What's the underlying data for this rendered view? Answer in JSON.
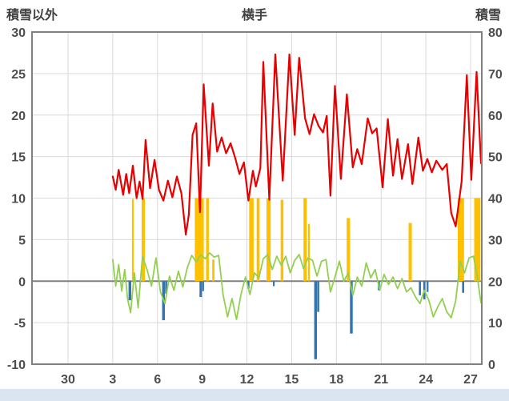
{
  "header": {
    "left_axis_title": "積雪以外",
    "title": "横手",
    "right_axis_title": "積雪"
  },
  "colors": {
    "red_line": "#e60000",
    "green_line": "#92d050",
    "orange_bar": "#ffc000",
    "blue_bar": "#2e75b6",
    "gridline": "#d9d9d9",
    "zero_line": "#808080",
    "frame": "#808080",
    "footer_strip": "#dbe5f1",
    "tick_text": "#4d4d4d"
  },
  "chart_data": {
    "type": "line",
    "title": "横手",
    "legend": "none",
    "grid": true,
    "left_axis": {
      "label": "積雪以外",
      "min": -10,
      "max": 30,
      "ticks": [
        30,
        25,
        20,
        15,
        10,
        5,
        0,
        -5,
        -10
      ]
    },
    "right_axis": {
      "label": "積雪",
      "min": 0,
      "max": 80,
      "ticks": [
        80,
        70,
        60,
        50,
        40,
        30,
        20,
        10,
        0
      ]
    },
    "x_axis": {
      "tick_labels": [
        "30",
        "3",
        "6",
        "9",
        "12",
        "15",
        "18",
        "21",
        "24",
        "27"
      ],
      "days_per_tick": 3,
      "first_tick_day_of_data": 3,
      "first_data_tick_index": 1
    },
    "series": [
      {
        "name": "orange-bars",
        "type": "bar",
        "color": "#ffc000",
        "bars": [
          [
            4.35,
            9.9,
            0.12
          ],
          [
            5.05,
            10,
            0.22
          ],
          [
            8.8,
            10,
            0.6
          ],
          [
            9.35,
            10,
            0.18
          ],
          [
            9.75,
            2.6,
            0.15
          ],
          [
            12.3,
            10,
            0.3
          ],
          [
            12.75,
            10,
            0.2
          ],
          [
            13.45,
            10,
            0.28
          ],
          [
            14.35,
            9.8,
            0.18
          ],
          [
            15.9,
            10,
            0.22
          ],
          [
            16.15,
            6.9,
            0.12
          ],
          [
            18.8,
            7.6,
            0.22
          ],
          [
            22.95,
            7.0,
            0.22
          ],
          [
            26.35,
            10,
            0.42
          ],
          [
            27.45,
            10,
            0.42
          ]
        ]
      },
      {
        "name": "blue-bars",
        "type": "bar",
        "color": "#2e75b6",
        "bars": [
          [
            4.15,
            -2.3,
            0.18
          ],
          [
            6.4,
            -4.7,
            0.18
          ],
          [
            6.58,
            -1.5,
            0.14
          ],
          [
            8.9,
            -1.9,
            0.16
          ],
          [
            9.06,
            -1.2,
            0.12
          ],
          [
            12.1,
            -0.9,
            0.14
          ],
          [
            13.8,
            -0.6,
            0.12
          ],
          [
            16.6,
            -9.4,
            0.18
          ],
          [
            16.78,
            -3.7,
            0.14
          ],
          [
            19.0,
            -6.3,
            0.18
          ],
          [
            20.85,
            -1.1,
            0.14
          ],
          [
            23.6,
            -1.7,
            0.14
          ],
          [
            23.9,
            -2.2,
            0.14
          ],
          [
            24.12,
            -1.3,
            0.12
          ],
          [
            26.5,
            -1.4,
            0.14
          ]
        ]
      },
      {
        "name": "green-line",
        "type": "line",
        "color": "#92d050",
        "width": 1.8,
        "points": [
          [
            3.0,
            2.6
          ],
          [
            3.2,
            -0.6
          ],
          [
            3.4,
            2.0
          ],
          [
            3.6,
            -1.2
          ],
          [
            3.8,
            1.4
          ],
          [
            4.0,
            -2.2
          ],
          [
            4.2,
            -3.8
          ],
          [
            4.45,
            1.0
          ],
          [
            4.7,
            -3.2
          ],
          [
            5.0,
            3.0
          ],
          [
            5.3,
            1.4
          ],
          [
            5.6,
            -0.6
          ],
          [
            5.9,
            2.8
          ],
          [
            6.2,
            -1.3
          ],
          [
            6.5,
            -2.7
          ],
          [
            6.8,
            0.6
          ],
          [
            7.1,
            -1.1
          ],
          [
            7.4,
            1.2
          ],
          [
            7.7,
            -0.7
          ],
          [
            8.0,
            1.6
          ],
          [
            8.3,
            3.1
          ],
          [
            8.6,
            2.3
          ],
          [
            8.9,
            3.2
          ],
          [
            9.2,
            2.7
          ],
          [
            9.5,
            3.4
          ],
          [
            9.8,
            2.9
          ],
          [
            10.1,
            3.1
          ],
          [
            10.4,
            -1.6
          ],
          [
            10.7,
            -4.3
          ],
          [
            11.0,
            -2.1
          ],
          [
            11.3,
            -4.6
          ],
          [
            11.6,
            -1.6
          ],
          [
            11.9,
            0.5
          ],
          [
            12.2,
            -1.6
          ],
          [
            12.5,
            1.0
          ],
          [
            12.8,
            0.4
          ],
          [
            13.1,
            2.7
          ],
          [
            13.4,
            3.2
          ],
          [
            13.7,
            1.4
          ],
          [
            14.0,
            3.0
          ],
          [
            14.3,
            1.9
          ],
          [
            14.6,
            3.0
          ],
          [
            14.9,
            1.0
          ],
          [
            15.2,
            2.5
          ],
          [
            15.5,
            3.2
          ],
          [
            15.8,
            1.5
          ],
          [
            16.1,
            2.8
          ],
          [
            16.4,
            2.5
          ],
          [
            16.7,
            0.6
          ],
          [
            17.0,
            2.4
          ],
          [
            17.3,
            2.6
          ],
          [
            17.6,
            -1.3
          ],
          [
            17.9,
            0.5
          ],
          [
            18.2,
            2.4
          ],
          [
            18.5,
            0.0
          ],
          [
            18.8,
            1.0
          ],
          [
            19.1,
            -1.7
          ],
          [
            19.4,
            0.5
          ],
          [
            19.7,
            -0.6
          ],
          [
            20.0,
            2.2
          ],
          [
            20.3,
            0.4
          ],
          [
            20.6,
            1.4
          ],
          [
            20.9,
            -1.1
          ],
          [
            21.2,
            0.8
          ],
          [
            21.5,
            -0.4
          ],
          [
            21.8,
            0.5
          ],
          [
            22.1,
            -0.9
          ],
          [
            22.4,
            0.3
          ],
          [
            22.7,
            -1.3
          ],
          [
            23.0,
            -0.8
          ],
          [
            23.3,
            -1.9
          ],
          [
            23.6,
            -2.7
          ],
          [
            23.9,
            -1.1
          ],
          [
            24.2,
            -2.3
          ],
          [
            24.5,
            -4.3
          ],
          [
            24.8,
            -3.1
          ],
          [
            25.1,
            -2.1
          ],
          [
            25.4,
            -3.7
          ],
          [
            25.7,
            -4.4
          ],
          [
            26.0,
            -2.4
          ],
          [
            26.3,
            2.4
          ],
          [
            26.6,
            1.0
          ],
          [
            26.9,
            2.8
          ],
          [
            27.2,
            3.0
          ],
          [
            27.45,
            0.5
          ],
          [
            27.7,
            -2.6
          ]
        ]
      },
      {
        "name": "red-line",
        "type": "line",
        "color": "#e60000",
        "width": 2.2,
        "points": [
          [
            3.0,
            12.6
          ],
          [
            3.2,
            11.0
          ],
          [
            3.4,
            13.4
          ],
          [
            3.7,
            10.4
          ],
          [
            3.9,
            12.9
          ],
          [
            4.1,
            10.6
          ],
          [
            4.35,
            13.9
          ],
          [
            4.6,
            10.0
          ],
          [
            4.8,
            12.0
          ],
          [
            5.0,
            9.9
          ],
          [
            5.2,
            17.0
          ],
          [
            5.5,
            11.2
          ],
          [
            5.8,
            14.6
          ],
          [
            6.1,
            11.0
          ],
          [
            6.4,
            9.7
          ],
          [
            6.7,
            12.1
          ],
          [
            7.0,
            10.1
          ],
          [
            7.3,
            12.6
          ],
          [
            7.6,
            10.6
          ],
          [
            7.9,
            5.6
          ],
          [
            8.1,
            8.0
          ],
          [
            8.35,
            17.6
          ],
          [
            8.6,
            19.0
          ],
          [
            8.85,
            8.3
          ],
          [
            9.1,
            23.7
          ],
          [
            9.45,
            13.9
          ],
          [
            9.7,
            21.4
          ],
          [
            10.0,
            15.6
          ],
          [
            10.3,
            17.3
          ],
          [
            10.6,
            15.4
          ],
          [
            10.9,
            16.6
          ],
          [
            11.2,
            14.9
          ],
          [
            11.5,
            12.9
          ],
          [
            11.8,
            14.3
          ],
          [
            12.1,
            9.7
          ],
          [
            12.4,
            13.3
          ],
          [
            12.6,
            11.4
          ],
          [
            12.9,
            13.6
          ],
          [
            13.1,
            26.4
          ],
          [
            13.5,
            9.8
          ],
          [
            13.9,
            27.3
          ],
          [
            14.4,
            12.1
          ],
          [
            14.85,
            27.3
          ],
          [
            15.2,
            17.6
          ],
          [
            15.5,
            26.9
          ],
          [
            15.9,
            19.6
          ],
          [
            16.2,
            17.7
          ],
          [
            16.5,
            20.1
          ],
          [
            16.8,
            18.7
          ],
          [
            17.1,
            17.9
          ],
          [
            17.35,
            19.9
          ],
          [
            17.6,
            10.3
          ],
          [
            17.9,
            23.5
          ],
          [
            18.3,
            12.3
          ],
          [
            18.7,
            22.5
          ],
          [
            19.1,
            13.7
          ],
          [
            19.4,
            15.9
          ],
          [
            19.7,
            14.1
          ],
          [
            20.1,
            19.6
          ],
          [
            20.4,
            17.8
          ],
          [
            20.7,
            18.4
          ],
          [
            21.1,
            11.3
          ],
          [
            21.45,
            19.5
          ],
          [
            21.8,
            12.7
          ],
          [
            22.1,
            17.1
          ],
          [
            22.4,
            12.3
          ],
          [
            22.8,
            16.5
          ],
          [
            23.1,
            11.7
          ],
          [
            23.5,
            17.3
          ],
          [
            23.8,
            13.3
          ],
          [
            24.1,
            14.7
          ],
          [
            24.4,
            13.1
          ],
          [
            24.7,
            14.5
          ],
          [
            25.1,
            13.4
          ],
          [
            25.4,
            14.1
          ],
          [
            25.7,
            8.2
          ],
          [
            26.0,
            6.6
          ],
          [
            26.4,
            12.0
          ],
          [
            26.75,
            24.8
          ],
          [
            27.05,
            12.2
          ],
          [
            27.4,
            25.2
          ],
          [
            27.7,
            14.2
          ]
        ]
      }
    ]
  }
}
